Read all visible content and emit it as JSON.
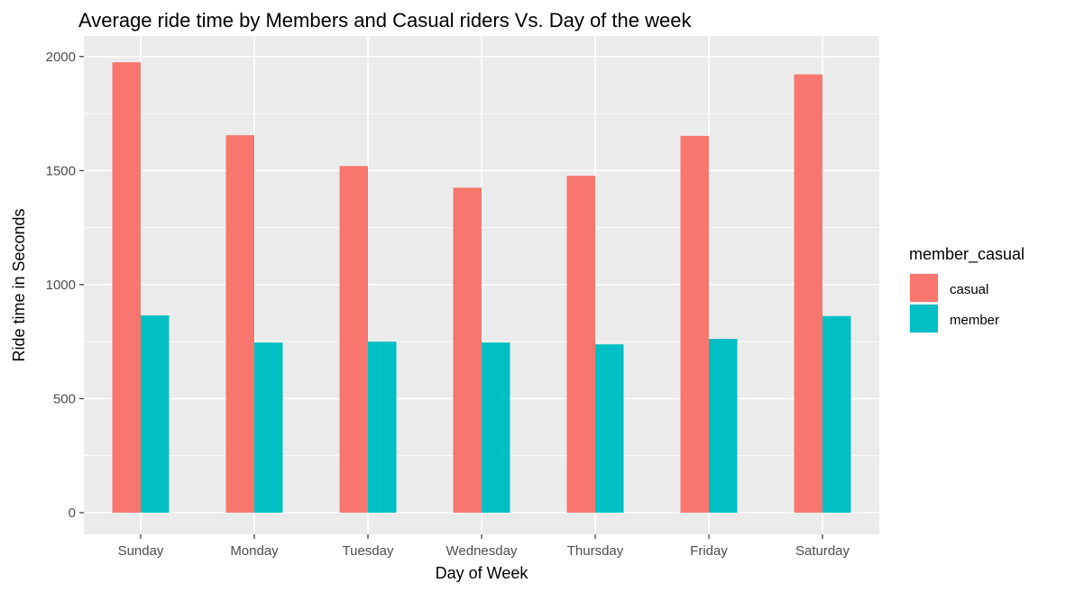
{
  "chart_data": {
    "type": "bar",
    "title": "Average ride time by Members and Casual riders Vs. Day of the week",
    "xlabel": "Day of Week",
    "ylabel": "Ride time in Seconds",
    "categories": [
      "Sunday",
      "Monday",
      "Tuesday",
      "Wednesday",
      "Thursday",
      "Friday",
      "Saturday"
    ],
    "series": [
      {
        "name": "casual",
        "color": "#F8766D",
        "values": [
          1975,
          1655,
          1520,
          1425,
          1477,
          1652,
          1922
        ]
      },
      {
        "name": "member",
        "color": "#00BFC4",
        "values": [
          865,
          746,
          750,
          746,
          738,
          762,
          862
        ]
      }
    ],
    "ylim": [
      -95,
      2090
    ],
    "yticks": [
      0,
      500,
      1000,
      1500,
      2000
    ],
    "grid": true,
    "panel_background": "#EBEBEB",
    "legend": {
      "title": "member_casual",
      "placement": "right"
    }
  }
}
